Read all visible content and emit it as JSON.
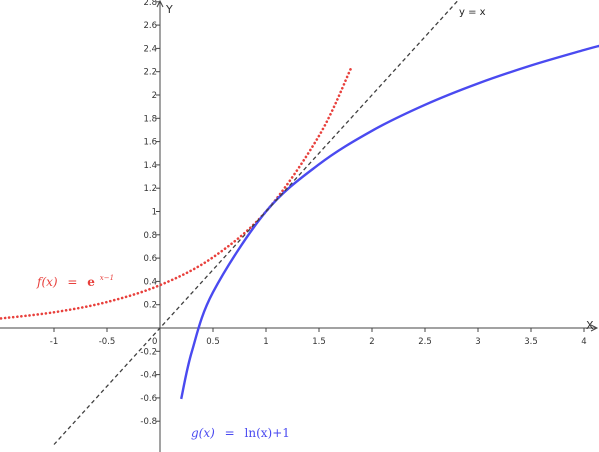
{
  "chart_data": {
    "type": "line",
    "title": "",
    "xlabel": "X",
    "ylabel": "Y",
    "xlim": [
      -1.5,
      4.15
    ],
    "ylim": [
      -1.0,
      2.85
    ],
    "grid": false,
    "x_ticks": [
      -1,
      -0.5,
      0.5,
      1,
      1.5,
      2,
      2.5,
      3,
      3.5,
      4
    ],
    "y_ticks": [
      -0.8,
      -0.6,
      -0.4,
      -0.2,
      0.2,
      0.4,
      0.6,
      0.8,
      1,
      1.2,
      1.4,
      1.6,
      1.8,
      2,
      2.2,
      2.4,
      2.6,
      2.8
    ],
    "origin_label": "0",
    "series": [
      {
        "name": "f(x) = e^(x−1)",
        "label_parts": {
          "lhs": "f(x)",
          "eq": "=",
          "base": "e",
          "exponent": "x−1"
        },
        "style": "dotted",
        "color": "#e8403c",
        "x": [
          -1.5,
          -1.0,
          -0.5,
          0.0,
          0.5,
          1.0,
          1.5,
          1.8
        ],
        "y": [
          0.082,
          0.135,
          0.223,
          0.368,
          0.607,
          1.0,
          1.649,
          2.226
        ]
      },
      {
        "name": "g(x) = ln(x)+1",
        "label_parts": {
          "lhs": "g(x)",
          "eq": "=",
          "rhs": "ln(x)+1"
        },
        "style": "solid",
        "color": "#4a4af0",
        "x": [
          0.2,
          0.3,
          0.5,
          1.0,
          1.5,
          2.0,
          2.5,
          3.0,
          3.5,
          4.0,
          4.15
        ],
        "y": [
          -0.609,
          -0.204,
          0.307,
          1.0,
          1.405,
          1.693,
          1.916,
          2.099,
          2.253,
          2.386,
          2.423
        ]
      },
      {
        "name": "y = x",
        "style": "dashed",
        "color": "#404040",
        "x": [
          -1.0,
          0.0,
          1.0,
          2.0,
          2.85
        ],
        "y": [
          -1.0,
          0.0,
          1.0,
          2.0,
          2.85
        ]
      }
    ]
  }
}
